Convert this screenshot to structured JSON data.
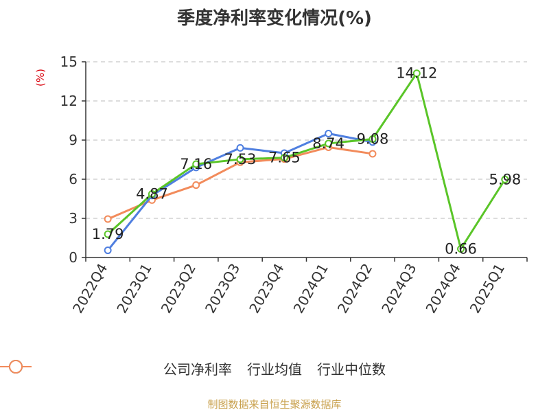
{
  "title": "季度净利率变化情况(%)",
  "unit_label": "(%)",
  "source": "制图数据来自恒生聚源数据库",
  "colors": {
    "company": "#5ac528",
    "industry_avg": "#4f7fe0",
    "industry_median": "#f28b5b",
    "axis": "#333333",
    "grid": "#bbbbbb"
  },
  "chart_data": {
    "type": "line",
    "title": "季度净利率变化情况(%)",
    "xlabel": "",
    "ylabel": "(%)",
    "ylim": [
      0,
      15
    ],
    "yticks": [
      0,
      3,
      6,
      9,
      12,
      15
    ],
    "grid": true,
    "legend_position": "bottom",
    "categories": [
      "2022Q4",
      "2023Q1",
      "2023Q2",
      "2023Q3",
      "2023Q4",
      "2024Q1",
      "2024Q2",
      "2024Q3",
      "2024Q4",
      "2025Q1"
    ],
    "series": [
      {
        "name": "公司净利率",
        "color": "#5ac528",
        "values": [
          1.79,
          4.87,
          7.16,
          7.53,
          7.65,
          8.74,
          9.08,
          14.12,
          0.66,
          5.98
        ],
        "labels": [
          "1.79",
          "4.87",
          "7.16",
          "7.53",
          "7.65",
          "8.74",
          "9.08",
          "14.12",
          "0.66",
          "5.98"
        ]
      },
      {
        "name": "行业均值",
        "color": "#4f7fe0",
        "values": [
          0.55,
          4.75,
          6.9,
          8.4,
          8.0,
          9.5,
          8.85,
          null,
          null,
          null
        ]
      },
      {
        "name": "行业中位数",
        "color": "#f28b5b",
        "values": [
          2.95,
          4.4,
          5.55,
          7.3,
          7.55,
          8.45,
          7.95,
          null,
          null,
          null
        ]
      }
    ]
  }
}
